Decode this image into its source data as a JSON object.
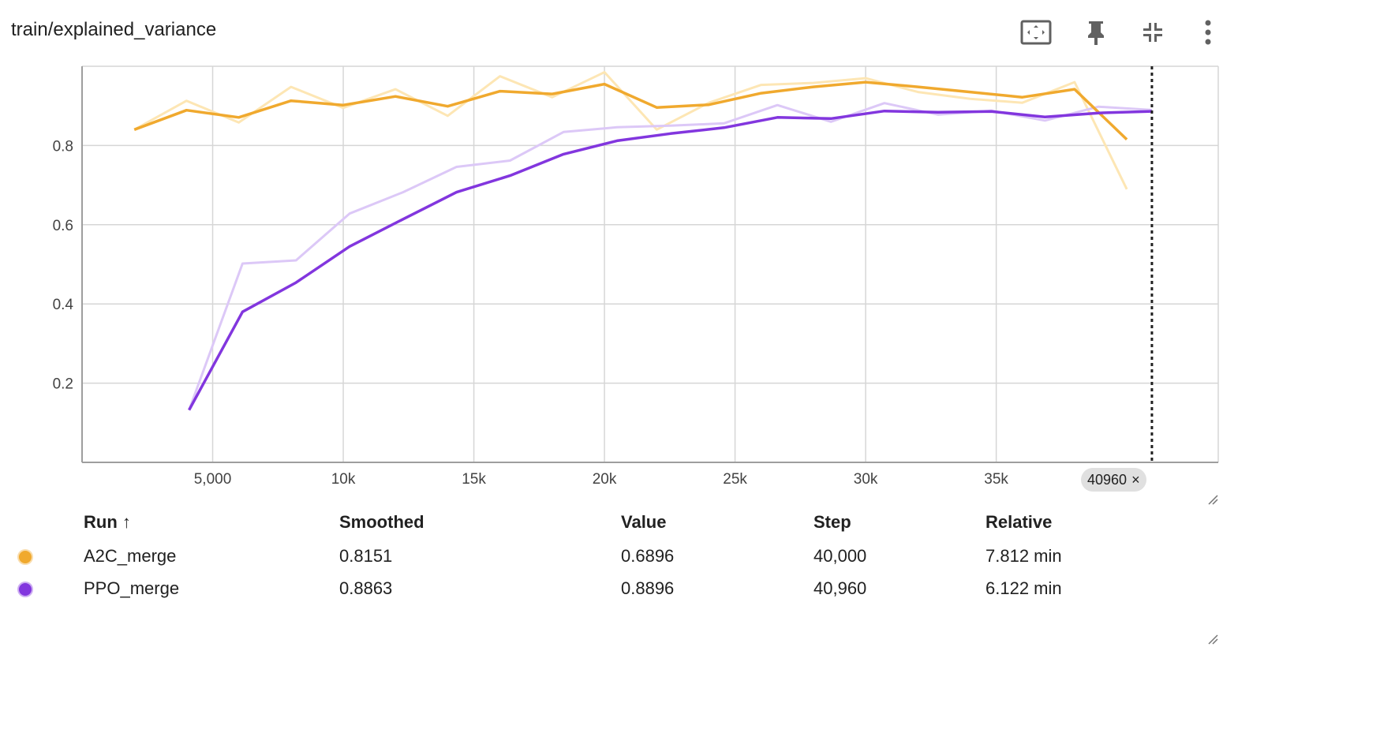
{
  "header": {
    "title": "train/explained_variance"
  },
  "toolbar": {
    "icons": [
      "fit-domain-icon",
      "pin-icon",
      "collapse-icon",
      "more-vert-icon"
    ]
  },
  "colors": {
    "A2C_merge": "#f0a92e",
    "A2C_merge_raw": "#fde6b4",
    "PPO_merge": "#8236de",
    "PPO_merge_raw": "#dcc8f7",
    "grid": "#d6d6d6",
    "axis": "#9e9e9e"
  },
  "chart_data": {
    "type": "line",
    "title": "train/explained_variance",
    "xlabel": "",
    "ylabel": "",
    "xlim": [
      0,
      43500
    ],
    "ylim": [
      0,
      1.0
    ],
    "x_ticks": [
      "5,000",
      "10k",
      "15k",
      "20k",
      "25k",
      "30k",
      "35k"
    ],
    "x_tick_values": [
      5000,
      10000,
      15000,
      20000,
      25000,
      30000,
      35000
    ],
    "y_ticks": [
      "0.2",
      "0.4",
      "0.6",
      "0.8"
    ],
    "y_tick_values": [
      0.2,
      0.4,
      0.6,
      0.8
    ],
    "grid": true,
    "hover_step": 40960,
    "series": [
      {
        "name": "A2C_merge",
        "raw_x": [
          2000,
          4000,
          6000,
          8000,
          10000,
          12000,
          14000,
          16000,
          18000,
          20000,
          22000,
          24000,
          26000,
          28000,
          30000,
          32000,
          34000,
          36000,
          38000,
          40000
        ],
        "raw_y": [
          0.84,
          0.913,
          0.858,
          0.948,
          0.895,
          0.942,
          0.875,
          0.975,
          0.922,
          0.985,
          0.84,
          0.908,
          0.953,
          0.958,
          0.97,
          0.935,
          0.918,
          0.908,
          0.96,
          0.6896
        ],
        "smoothed_y": [
          0.84,
          0.889,
          0.871,
          0.913,
          0.902,
          0.924,
          0.899,
          0.937,
          0.93,
          0.955,
          0.896,
          0.903,
          0.932,
          0.948,
          0.96,
          0.948,
          0.935,
          0.922,
          0.942,
          0.8151
        ]
      },
      {
        "name": "PPO_merge",
        "raw_x": [
          4096,
          6144,
          8192,
          10240,
          12288,
          14336,
          16384,
          18432,
          20480,
          22528,
          24576,
          26624,
          28672,
          30720,
          32768,
          34816,
          36864,
          38912,
          40960
        ],
        "raw_y": [
          0.132,
          0.502,
          0.51,
          0.628,
          0.682,
          0.746,
          0.762,
          0.834,
          0.846,
          0.85,
          0.856,
          0.902,
          0.86,
          0.907,
          0.878,
          0.888,
          0.863,
          0.898,
          0.8896
        ],
        "smoothed_y": [
          0.132,
          0.38,
          0.454,
          0.545,
          0.614,
          0.682,
          0.724,
          0.778,
          0.812,
          0.83,
          0.845,
          0.871,
          0.868,
          0.887,
          0.884,
          0.886,
          0.872,
          0.882,
          0.8863
        ]
      }
    ]
  },
  "step_chip": {
    "label": "40960",
    "close": "×"
  },
  "table": {
    "headers": {
      "run": "Run ↑",
      "smoothed": "Smoothed",
      "value": "Value",
      "step": "Step",
      "relative": "Relative"
    },
    "rows": [
      {
        "run": "A2C_merge",
        "smoothed": "0.8151",
        "value": "0.6896",
        "step": "40,000",
        "relative": "7.812 min"
      },
      {
        "run": "PPO_merge",
        "smoothed": "0.8863",
        "value": "0.8896",
        "step": "40,960",
        "relative": "6.122 min"
      }
    ]
  }
}
